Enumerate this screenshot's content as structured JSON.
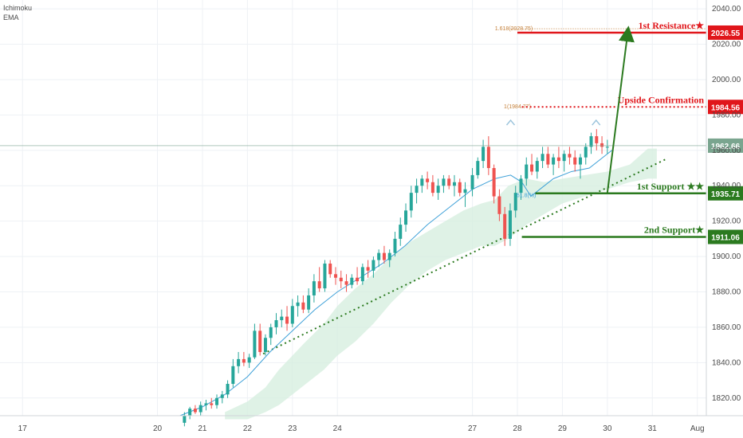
{
  "legend": {
    "line1": "Ichimoku",
    "line2": "EMA"
  },
  "colors": {
    "up": "#26a69a",
    "down": "#ef5350",
    "ema": "#3fa1d8",
    "cloud": "#d4eedd",
    "red": "#e0161b",
    "green": "#2b7a1f",
    "grid": "#eef1f5",
    "last": "#7aa58f",
    "fib": "#c4803a"
  },
  "chart_data": {
    "type": "candlestick",
    "y_range": [
      1810,
      2045
    ],
    "y_ticks": [
      "1820.00",
      "1840.00",
      "1860.00",
      "1880.00",
      "1900.00",
      "1920.00",
      "1940.00",
      "1960.00",
      "1980.00",
      "2000.00",
      "2020.00",
      "2040.00"
    ],
    "x_range": [
      16.5,
      32.2
    ],
    "x_ticks": [
      {
        "x": 17,
        "label": "17"
      },
      {
        "x": 20,
        "label": "20"
      },
      {
        "x": 21,
        "label": "21"
      },
      {
        "x": 22,
        "label": "22"
      },
      {
        "x": 23,
        "label": "23"
      },
      {
        "x": 24,
        "label": "24"
      },
      {
        "x": 27,
        "label": "27"
      },
      {
        "x": 28,
        "label": "28"
      },
      {
        "x": 29,
        "label": "29"
      },
      {
        "x": 30,
        "label": "30"
      },
      {
        "x": 31,
        "label": "31"
      },
      {
        "x": 32,
        "label": "Aug"
      }
    ],
    "levels": [
      {
        "name": "first-resistance",
        "price": 2026.55,
        "label": "1st Resistance★",
        "badge": "2026.55",
        "color": "red",
        "style": "solid",
        "x_start": 28.0
      },
      {
        "name": "upside-confirmation",
        "price": 1984.56,
        "label": "Upside Confirmation",
        "badge": "1984.56",
        "color": "red",
        "style": "dotted",
        "x_start": 28.1
      },
      {
        "name": "first-support",
        "price": 1935.71,
        "label": "1st Support ★★",
        "badge": "1935.71",
        "color": "green",
        "style": "solid",
        "x_start": 28.4
      },
      {
        "name": "second-support",
        "price": 1911.06,
        "label": "2nd Support★",
        "badge": "1911.06",
        "color": "green",
        "style": "solid",
        "x_start": 28.1
      }
    ],
    "last_price": {
      "price": 1962.66,
      "badge": "1962.66"
    },
    "fib_labels": [
      {
        "text": "1.618(2028.75)",
        "price": 2028.75,
        "x": 27.5
      },
      {
        "text": "1(1984.77)",
        "price": 1984.77,
        "x": 27.7
      },
      {
        "text": "61.8(%)",
        "price": 1934.5,
        "x": 27.98
      }
    ],
    "ema": [
      [
        20.5,
        1810
      ],
      [
        21.0,
        1815
      ],
      [
        21.5,
        1822
      ],
      [
        22.0,
        1832
      ],
      [
        22.5,
        1846
      ],
      [
        23.0,
        1858
      ],
      [
        23.5,
        1870
      ],
      [
        24.0,
        1880
      ],
      [
        24.5,
        1888
      ],
      [
        25.0,
        1896
      ],
      [
        25.5,
        1906
      ],
      [
        26.0,
        1918
      ],
      [
        26.5,
        1928
      ],
      [
        27.0,
        1938
      ],
      [
        27.5,
        1944
      ],
      [
        27.85,
        1946
      ],
      [
        28.1,
        1942
      ],
      [
        28.3,
        1934
      ],
      [
        28.5,
        1938
      ],
      [
        28.8,
        1944
      ],
      [
        29.2,
        1948
      ],
      [
        29.6,
        1950
      ],
      [
        30.0,
        1958
      ],
      [
        30.1,
        1960
      ]
    ],
    "cloud_top": [
      [
        21.5,
        1812
      ],
      [
        22.0,
        1818
      ],
      [
        22.4,
        1826
      ],
      [
        22.7,
        1836
      ],
      [
        23.0,
        1844
      ],
      [
        23.3,
        1852
      ],
      [
        23.7,
        1862
      ],
      [
        24.0,
        1872
      ],
      [
        24.4,
        1882
      ],
      [
        24.8,
        1890
      ],
      [
        25.2,
        1900
      ],
      [
        25.6,
        1908
      ],
      [
        26.0,
        1914
      ],
      [
        26.4,
        1920
      ],
      [
        26.8,
        1926
      ],
      [
        27.2,
        1930
      ],
      [
        27.5,
        1932
      ],
      [
        27.8,
        1940
      ],
      [
        28.2,
        1944
      ],
      [
        28.6,
        1942
      ],
      [
        29.0,
        1944
      ],
      [
        29.5,
        1946
      ],
      [
        30.0,
        1948
      ],
      [
        30.5,
        1952
      ],
      [
        30.9,
        1961
      ],
      [
        31.1,
        1961
      ]
    ],
    "cloud_bottom": [
      [
        21.5,
        1808
      ],
      [
        22.0,
        1808
      ],
      [
        22.4,
        1812
      ],
      [
        22.7,
        1816
      ],
      [
        23.0,
        1822
      ],
      [
        23.3,
        1828
      ],
      [
        23.7,
        1836
      ],
      [
        24.0,
        1844
      ],
      [
        24.4,
        1852
      ],
      [
        24.8,
        1862
      ],
      [
        25.2,
        1874
      ],
      [
        25.6,
        1884
      ],
      [
        26.0,
        1892
      ],
      [
        26.4,
        1898
      ],
      [
        26.8,
        1902
      ],
      [
        27.2,
        1906
      ],
      [
        27.5,
        1906
      ],
      [
        27.8,
        1910
      ],
      [
        28.2,
        1918
      ],
      [
        28.6,
        1924
      ],
      [
        29.0,
        1930
      ],
      [
        29.5,
        1934
      ],
      [
        30.0,
        1938
      ],
      [
        30.5,
        1942
      ],
      [
        30.9,
        1944
      ],
      [
        31.1,
        1944
      ]
    ],
    "candles": [
      [
        20.6,
        1806,
        1812,
        1804,
        1810
      ],
      [
        20.72,
        1810,
        1815,
        1808,
        1814
      ],
      [
        20.84,
        1814,
        1816,
        1811,
        1812
      ],
      [
        20.96,
        1812,
        1818,
        1810,
        1816
      ],
      [
        21.08,
        1816,
        1819,
        1813,
        1817
      ],
      [
        21.2,
        1817,
        1820,
        1814,
        1816
      ],
      [
        21.32,
        1816,
        1822,
        1814,
        1820
      ],
      [
        21.44,
        1820,
        1824,
        1817,
        1822
      ],
      [
        21.56,
        1822,
        1830,
        1820,
        1828
      ],
      [
        21.68,
        1828,
        1842,
        1826,
        1838
      ],
      [
        21.8,
        1838,
        1846,
        1834,
        1842
      ],
      [
        21.92,
        1842,
        1846,
        1838,
        1840
      ],
      [
        22.04,
        1840,
        1845,
        1837,
        1843
      ],
      [
        22.16,
        1843,
        1862,
        1842,
        1858
      ],
      [
        22.28,
        1858,
        1862,
        1844,
        1846
      ],
      [
        22.4,
        1846,
        1856,
        1844,
        1854
      ],
      [
        22.52,
        1854,
        1862,
        1850,
        1860
      ],
      [
        22.64,
        1860,
        1868,
        1856,
        1864
      ],
      [
        22.76,
        1864,
        1870,
        1860,
        1866
      ],
      [
        22.88,
        1866,
        1872,
        1858,
        1862
      ],
      [
        23.0,
        1862,
        1876,
        1860,
        1872
      ],
      [
        23.12,
        1872,
        1878,
        1866,
        1874
      ],
      [
        23.24,
        1874,
        1878,
        1868,
        1870
      ],
      [
        23.36,
        1870,
        1882,
        1868,
        1878
      ],
      [
        23.48,
        1878,
        1890,
        1874,
        1886
      ],
      [
        23.6,
        1886,
        1894,
        1880,
        1882
      ],
      [
        23.72,
        1882,
        1898,
        1880,
        1896
      ],
      [
        23.84,
        1896,
        1898,
        1888,
        1890
      ],
      [
        23.96,
        1890,
        1894,
        1884,
        1888
      ],
      [
        24.08,
        1888,
        1892,
        1882,
        1886
      ],
      [
        24.2,
        1886,
        1890,
        1880,
        1884
      ],
      [
        24.32,
        1884,
        1890,
        1882,
        1888
      ],
      [
        24.44,
        1888,
        1894,
        1884,
        1886
      ],
      [
        24.56,
        1886,
        1896,
        1884,
        1894
      ],
      [
        24.68,
        1894,
        1898,
        1888,
        1892
      ],
      [
        24.8,
        1892,
        1900,
        1888,
        1898
      ],
      [
        24.92,
        1898,
        1904,
        1894,
        1902
      ],
      [
        25.04,
        1902,
        1906,
        1896,
        1898
      ],
      [
        25.16,
        1898,
        1904,
        1894,
        1902
      ],
      [
        25.28,
        1902,
        1914,
        1900,
        1910
      ],
      [
        25.4,
        1910,
        1922,
        1906,
        1918
      ],
      [
        25.52,
        1918,
        1930,
        1914,
        1926
      ],
      [
        25.64,
        1926,
        1940,
        1922,
        1936
      ],
      [
        25.76,
        1936,
        1944,
        1930,
        1940
      ],
      [
        25.88,
        1940,
        1946,
        1936,
        1944
      ],
      [
        26.0,
        1944,
        1948,
        1938,
        1942
      ],
      [
        26.12,
        1942,
        1946,
        1934,
        1936
      ],
      [
        26.24,
        1936,
        1944,
        1932,
        1940
      ],
      [
        26.36,
        1940,
        1946,
        1936,
        1944
      ],
      [
        26.48,
        1944,
        1946,
        1938,
        1940
      ],
      [
        26.6,
        1940,
        1946,
        1934,
        1942
      ],
      [
        26.72,
        1942,
        1944,
        1934,
        1936
      ],
      [
        26.84,
        1936,
        1942,
        1928,
        1938
      ],
      [
        27.0,
        1938,
        1950,
        1934,
        1946
      ],
      [
        27.12,
        1946,
        1956,
        1944,
        1954
      ],
      [
        27.24,
        1954,
        1966,
        1950,
        1962
      ],
      [
        27.36,
        1962,
        1968,
        1946,
        1950
      ],
      [
        27.48,
        1950,
        1952,
        1930,
        1934
      ],
      [
        27.6,
        1934,
        1938,
        1920,
        1924
      ],
      [
        27.72,
        1924,
        1928,
        1906,
        1910
      ],
      [
        27.84,
        1910,
        1930,
        1906,
        1926
      ],
      [
        27.96,
        1926,
        1940,
        1922,
        1936
      ],
      [
        28.08,
        1936,
        1946,
        1932,
        1944
      ],
      [
        28.2,
        1944,
        1956,
        1940,
        1952
      ],
      [
        28.32,
        1952,
        1958,
        1946,
        1948
      ],
      [
        28.44,
        1948,
        1956,
        1944,
        1954
      ],
      [
        28.56,
        1954,
        1962,
        1950,
        1958
      ],
      [
        28.68,
        1958,
        1962,
        1950,
        1952
      ],
      [
        28.8,
        1952,
        1958,
        1946,
        1956
      ],
      [
        28.92,
        1956,
        1962,
        1950,
        1954
      ],
      [
        29.04,
        1954,
        1960,
        1948,
        1958
      ],
      [
        29.16,
        1958,
        1962,
        1952,
        1956
      ],
      [
        29.28,
        1956,
        1960,
        1948,
        1952
      ],
      [
        29.4,
        1952,
        1958,
        1944,
        1956
      ],
      [
        29.52,
        1956,
        1964,
        1952,
        1962
      ],
      [
        29.64,
        1962,
        1970,
        1958,
        1968
      ],
      [
        29.76,
        1968,
        1972,
        1960,
        1964
      ],
      [
        29.88,
        1964,
        1968,
        1958,
        1962
      ],
      [
        30.0,
        1962,
        1966,
        1958,
        1962
      ]
    ]
  }
}
